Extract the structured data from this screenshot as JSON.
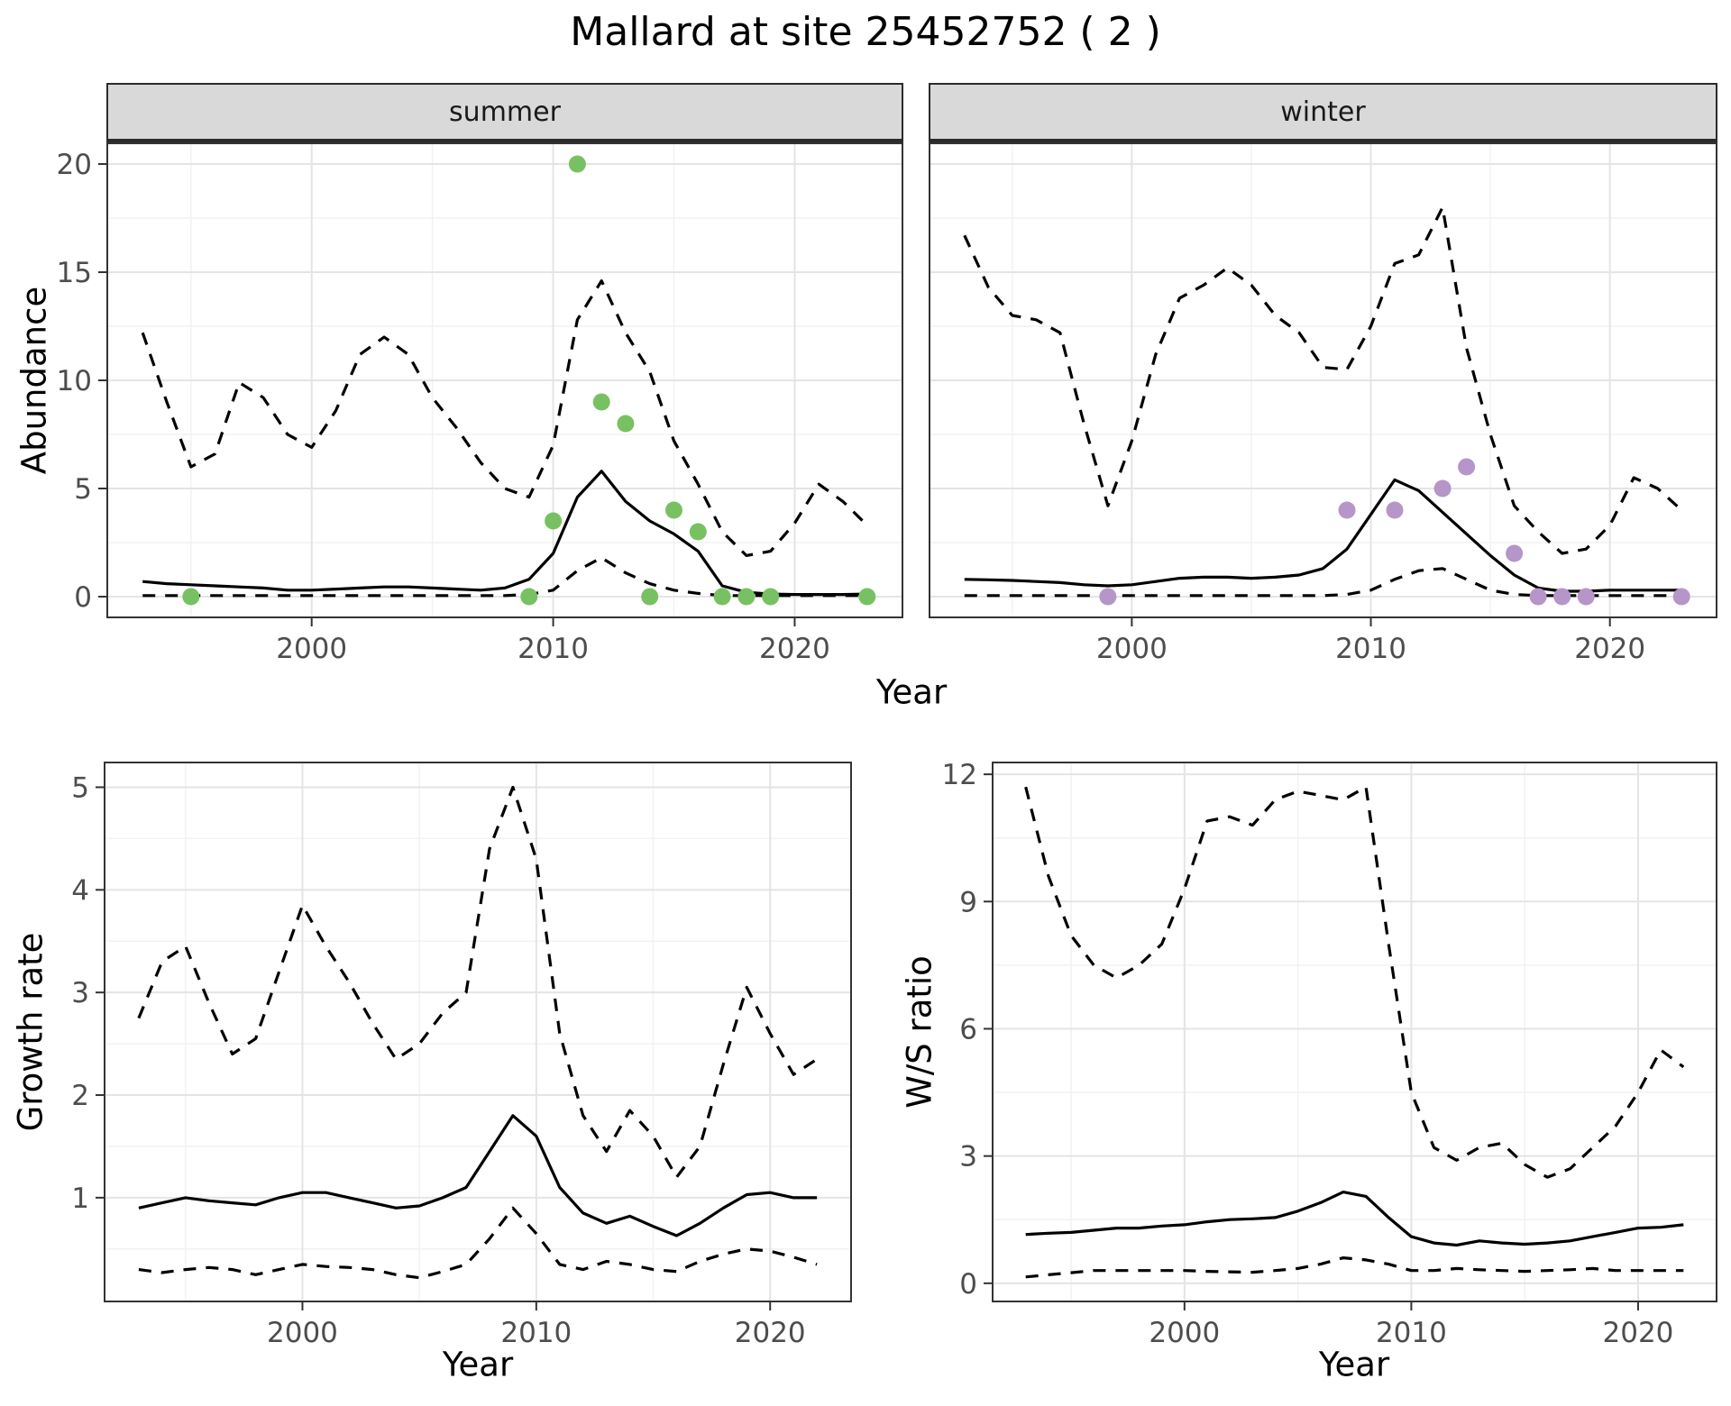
{
  "title": "Mallard at site 25452752 ( 2 )",
  "colors": {
    "summer_points": "#78c162",
    "winter_points": "#b695c8",
    "line": "#000000",
    "grid_major": "#e4e4e4",
    "grid_minor": "#f2f2f2",
    "panel_border": "#333333",
    "strip_bg": "#d9d9d9",
    "tick_text": "#4d4d4d"
  },
  "top_figure": {
    "ylabel": "Abundance",
    "xlabel": "Year"
  },
  "bottom_left_figure": {
    "ylabel": "Growth rate",
    "xlabel": "Year"
  },
  "bottom_right_figure": {
    "ylabel": "W/S ratio",
    "xlabel": "Year"
  },
  "chart_data": [
    {
      "id": "abundance-summer",
      "type": "line",
      "facet": "summer",
      "xlabel": "Year",
      "ylabel": "Abundance",
      "xlim": [
        1991.5,
        2024.5
      ],
      "ylim": [
        -1,
        21
      ],
      "xticks": [
        2000,
        2010,
        2020
      ],
      "yticks": [
        0,
        5,
        10,
        15,
        20
      ],
      "x": [
        1993,
        1994,
        1995,
        1996,
        1997,
        1998,
        1999,
        2000,
        2001,
        2002,
        2003,
        2004,
        2005,
        2006,
        2007,
        2008,
        2009,
        2010,
        2011,
        2012,
        2013,
        2014,
        2015,
        2016,
        2017,
        2018,
        2019,
        2020,
        2021,
        2022,
        2023
      ],
      "series": [
        {
          "name": "fit",
          "style": "solid",
          "values": [
            0.7,
            0.6,
            0.55,
            0.5,
            0.45,
            0.4,
            0.3,
            0.3,
            0.35,
            0.4,
            0.45,
            0.45,
            0.4,
            0.35,
            0.3,
            0.4,
            0.8,
            2.0,
            4.6,
            5.8,
            4.4,
            3.5,
            2.9,
            2.1,
            0.5,
            0.2,
            0.12,
            0.1,
            0.1,
            0.1,
            0.12
          ]
        },
        {
          "name": "upper-ci",
          "style": "dashed",
          "values": [
            12.2,
            9.0,
            6.0,
            6.6,
            9.9,
            9.2,
            7.5,
            6.9,
            8.6,
            11.2,
            12.0,
            11.2,
            9.2,
            7.8,
            6.2,
            5.0,
            4.6,
            7.0,
            12.8,
            14.6,
            12.2,
            10.4,
            7.2,
            5.2,
            3.0,
            1.9,
            2.1,
            3.4,
            5.2,
            4.4,
            3.3
          ]
        },
        {
          "name": "lower-ci",
          "style": "dashed",
          "values": [
            0.05,
            0.05,
            0.05,
            0.05,
            0.05,
            0.05,
            0.05,
            0.05,
            0.05,
            0.05,
            0.05,
            0.05,
            0.05,
            0.05,
            0.05,
            0.05,
            0.1,
            0.3,
            1.2,
            1.8,
            1.1,
            0.6,
            0.3,
            0.15,
            0.05,
            0.05,
            0.05,
            0.05,
            0.05,
            0.05,
            0.05
          ]
        }
      ],
      "points": {
        "name": "observed-counts",
        "color_key": "summer_points",
        "x": [
          1995,
          2009,
          2010,
          2011,
          2012,
          2013,
          2014,
          2015,
          2016,
          2017,
          2018,
          2019,
          2023
        ],
        "y": [
          0,
          0,
          3.5,
          20,
          9,
          8,
          0,
          4,
          3,
          0,
          0,
          0,
          0
        ]
      }
    },
    {
      "id": "abundance-winter",
      "type": "line",
      "facet": "winter",
      "xlabel": "Year",
      "ylabel": "Abundance",
      "xlim": [
        1991.5,
        2024.5
      ],
      "ylim": [
        -1,
        21
      ],
      "xticks": [
        2000,
        2010,
        2020
      ],
      "yticks": [
        0,
        5,
        10,
        15,
        20
      ],
      "x": [
        1993,
        1994,
        1995,
        1996,
        1997,
        1998,
        1999,
        2000,
        2001,
        2002,
        2003,
        2004,
        2005,
        2006,
        2007,
        2008,
        2009,
        2010,
        2011,
        2012,
        2013,
        2014,
        2015,
        2016,
        2017,
        2018,
        2019,
        2020,
        2021,
        2022,
        2023
      ],
      "series": [
        {
          "name": "fit",
          "style": "solid",
          "values": [
            0.8,
            0.78,
            0.75,
            0.7,
            0.65,
            0.55,
            0.5,
            0.55,
            0.7,
            0.85,
            0.9,
            0.9,
            0.85,
            0.9,
            1.0,
            1.3,
            2.2,
            3.8,
            5.4,
            4.9,
            3.9,
            2.9,
            1.9,
            1.0,
            0.4,
            0.25,
            0.25,
            0.3,
            0.3,
            0.3,
            0.3
          ]
        },
        {
          "name": "upper-ci",
          "style": "dashed",
          "values": [
            16.7,
            14.3,
            13.0,
            12.8,
            12.2,
            8.0,
            4.2,
            7.2,
            11.2,
            13.8,
            14.4,
            15.2,
            14.4,
            13.0,
            12.2,
            10.6,
            10.5,
            12.5,
            15.4,
            15.8,
            18.0,
            11.5,
            7.5,
            4.2,
            3.0,
            2.0,
            2.2,
            3.3,
            5.5,
            5.0,
            4.0
          ]
        },
        {
          "name": "lower-ci",
          "style": "dashed",
          "values": [
            0.05,
            0.05,
            0.05,
            0.05,
            0.05,
            0.05,
            0.05,
            0.05,
            0.05,
            0.05,
            0.05,
            0.05,
            0.05,
            0.05,
            0.05,
            0.05,
            0.1,
            0.3,
            0.8,
            1.2,
            1.3,
            0.8,
            0.3,
            0.1,
            0.05,
            0.05,
            0.05,
            0.05,
            0.05,
            0.05,
            0.05
          ]
        }
      ],
      "points": {
        "name": "observed-counts",
        "color_key": "winter_points",
        "x": [
          1999,
          2009,
          2011,
          2013,
          2014,
          2016,
          2017,
          2018,
          2019,
          2023
        ],
        "y": [
          0,
          4,
          4,
          5,
          6,
          2,
          0,
          0,
          0,
          0
        ]
      }
    },
    {
      "id": "growth-rate",
      "type": "line",
      "xlabel": "Year",
      "ylabel": "Growth rate",
      "xlim": [
        1991.5,
        2023.5
      ],
      "ylim": [
        -0.02,
        5.25
      ],
      "xticks": [
        2000,
        2010,
        2020
      ],
      "yticks": [
        1,
        2,
        3,
        4,
        5
      ],
      "x": [
        1993,
        1994,
        1995,
        1996,
        1997,
        1998,
        1999,
        2000,
        2001,
        2002,
        2003,
        2004,
        2005,
        2006,
        2007,
        2008,
        2009,
        2010,
        2011,
        2012,
        2013,
        2014,
        2015,
        2016,
        2017,
        2018,
        2019,
        2020,
        2021,
        2022
      ],
      "series": [
        {
          "name": "fit",
          "style": "solid",
          "values": [
            0.9,
            0.95,
            1.0,
            0.97,
            0.95,
            0.93,
            1.0,
            1.05,
            1.05,
            1.0,
            0.95,
            0.9,
            0.92,
            1.0,
            1.1,
            1.45,
            1.8,
            1.6,
            1.1,
            0.85,
            0.75,
            0.82,
            0.72,
            0.63,
            0.75,
            0.9,
            1.03,
            1.05,
            1.0,
            1.0
          ]
        },
        {
          "name": "upper-ci",
          "style": "dashed",
          "values": [
            2.75,
            3.3,
            3.45,
            2.9,
            2.4,
            2.55,
            3.2,
            3.85,
            3.45,
            3.1,
            2.7,
            2.35,
            2.5,
            2.8,
            3.0,
            4.4,
            5.0,
            4.3,
            2.6,
            1.8,
            1.45,
            1.85,
            1.6,
            1.2,
            1.5,
            2.3,
            3.05,
            2.6,
            2.2,
            2.35
          ]
        },
        {
          "name": "lower-ci",
          "style": "dashed",
          "values": [
            0.3,
            0.27,
            0.3,
            0.32,
            0.3,
            0.25,
            0.3,
            0.35,
            0.33,
            0.32,
            0.3,
            0.25,
            0.22,
            0.28,
            0.35,
            0.6,
            0.9,
            0.65,
            0.35,
            0.3,
            0.38,
            0.35,
            0.3,
            0.28,
            0.38,
            0.45,
            0.5,
            0.48,
            0.42,
            0.35
          ]
        }
      ]
    },
    {
      "id": "ws-ratio",
      "type": "line",
      "xlabel": "Year",
      "ylabel": "W/S ratio",
      "xlim": [
        1991.5,
        2023.5
      ],
      "ylim": [
        -0.45,
        12.3
      ],
      "xticks": [
        2000,
        2010,
        2020
      ],
      "yticks": [
        0,
        3,
        6,
        9,
        12
      ],
      "x": [
        1993,
        1994,
        1995,
        1996,
        1997,
        1998,
        1999,
        2000,
        2001,
        2002,
        2003,
        2004,
        2005,
        2006,
        2007,
        2008,
        2009,
        2010,
        2011,
        2012,
        2013,
        2014,
        2015,
        2016,
        2017,
        2018,
        2019,
        2020,
        2021,
        2022
      ],
      "series": [
        {
          "name": "fit",
          "style": "solid",
          "values": [
            1.15,
            1.18,
            1.2,
            1.25,
            1.3,
            1.3,
            1.35,
            1.38,
            1.45,
            1.5,
            1.52,
            1.55,
            1.7,
            1.9,
            2.15,
            2.05,
            1.55,
            1.1,
            0.95,
            0.9,
            1.0,
            0.95,
            0.92,
            0.95,
            1.0,
            1.1,
            1.2,
            1.3,
            1.32,
            1.38
          ]
        },
        {
          "name": "upper-ci",
          "style": "dashed",
          "values": [
            11.7,
            9.6,
            8.2,
            7.5,
            7.2,
            7.5,
            8.0,
            9.3,
            10.9,
            11.0,
            10.8,
            11.4,
            11.6,
            11.5,
            11.4,
            11.7,
            8.0,
            4.5,
            3.2,
            2.9,
            3.2,
            3.3,
            2.8,
            2.5,
            2.7,
            3.2,
            3.7,
            4.5,
            5.5,
            5.1
          ]
        },
        {
          "name": "lower-ci",
          "style": "dashed",
          "values": [
            0.15,
            0.2,
            0.25,
            0.3,
            0.3,
            0.3,
            0.3,
            0.3,
            0.28,
            0.27,
            0.26,
            0.3,
            0.35,
            0.45,
            0.6,
            0.55,
            0.45,
            0.3,
            0.3,
            0.35,
            0.32,
            0.3,
            0.28,
            0.3,
            0.32,
            0.35,
            0.3,
            0.3,
            0.3,
            0.3
          ]
        }
      ]
    }
  ]
}
